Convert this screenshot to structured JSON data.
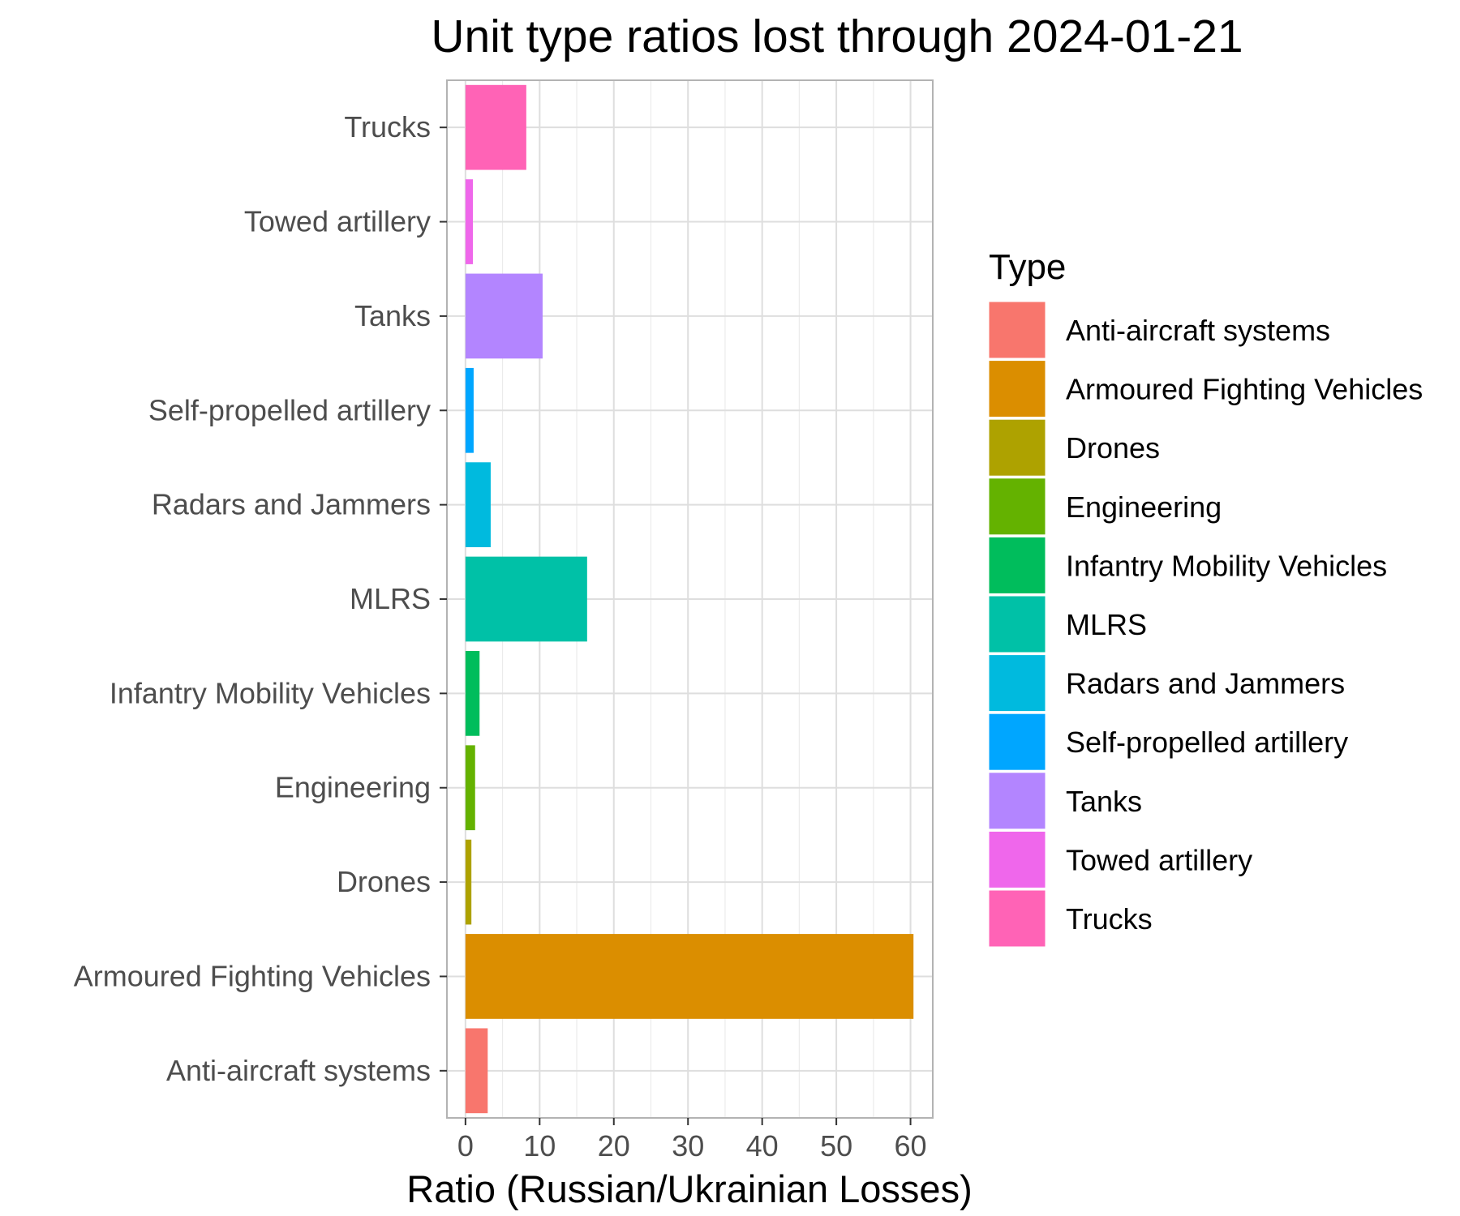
{
  "chart_data": {
    "type": "bar",
    "orientation": "horizontal",
    "title": "Unit type ratios lost through 2024-01-21",
    "xlabel": "Ratio (Russian/Ukrainian Losses)",
    "ylabel": "",
    "xlim": [
      -2.5,
      63
    ],
    "xticks": [
      0,
      10,
      20,
      30,
      40,
      50,
      60
    ],
    "grid": true,
    "legend": {
      "title": "Type",
      "position": "right"
    },
    "categories": [
      "Anti-aircraft systems",
      "Armoured Fighting Vehicles",
      "Drones",
      "Engineering",
      "Infantry Mobility Vehicles",
      "MLRS",
      "Radars and Jammers",
      "Self-propelled artillery",
      "Tanks",
      "Towed artillery",
      "Trucks"
    ],
    "values": [
      3.0,
      60.4,
      0.8,
      1.3,
      1.9,
      16.4,
      3.4,
      1.1,
      10.4,
      1.0,
      8.2
    ],
    "colors": [
      "#F8766D",
      "#DB8E00",
      "#AEA200",
      "#64B200",
      "#00BD5C",
      "#00C1A7",
      "#00BADE",
      "#00A6FF",
      "#B385FF",
      "#EF67EB",
      "#FF63B6"
    ]
  }
}
